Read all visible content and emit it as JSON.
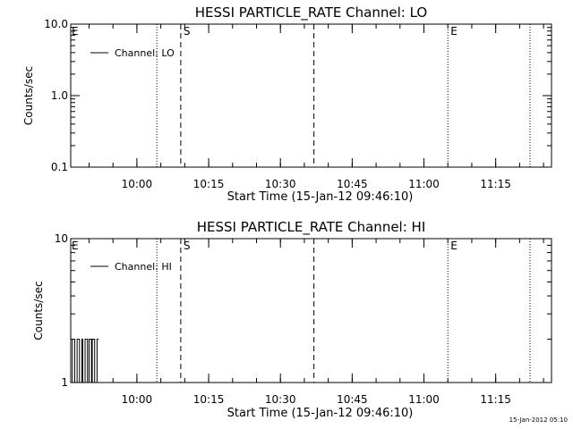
{
  "footer": {
    "timestamp": "15-Jan-2012 05:10"
  },
  "chart_data": [
    {
      "type": "line",
      "title": "HESSI PARTICLE_RATE Channel: LO",
      "xlabel": "Start Time (15-Jan-12 09:46:10)",
      "ylabel": "Counts/sec",
      "yscale": "log",
      "ylim": [
        0.1,
        10.0
      ],
      "xlim": [
        "09:46:10",
        "11:26:40"
      ],
      "x_ticks": [
        "10:00",
        "10:15",
        "10:30",
        "10:45",
        "11:00",
        "11:15"
      ],
      "y_ticks": [
        "0.1",
        "1.0",
        "10.0"
      ],
      "legend": {
        "position": "top-left",
        "entries": [
          "Channel: LO"
        ]
      },
      "series": [
        {
          "name": "Channel: LO",
          "x": [],
          "values": []
        }
      ],
      "markers": [
        {
          "time": "10:04:10",
          "style": "dotted",
          "label": ""
        },
        {
          "time": "10:09:10",
          "style": "dashed",
          "label": "S"
        },
        {
          "time": "10:37:00",
          "style": "dashed",
          "label": ""
        },
        {
          "time": "11:05:00",
          "style": "dotted",
          "label": "E"
        },
        {
          "time": "11:22:10",
          "style": "dotted",
          "label": ""
        }
      ],
      "corner_label": "E"
    },
    {
      "type": "line",
      "title": "HESSI PARTICLE_RATE Channel: HI",
      "xlabel": "Start Time (15-Jan-12 09:46:10)",
      "ylabel": "Counts/sec",
      "yscale": "log",
      "ylim": [
        1,
        10
      ],
      "xlim": [
        "09:46:10",
        "11:26:40"
      ],
      "x_ticks": [
        "10:00",
        "10:15",
        "10:30",
        "10:45",
        "11:00",
        "11:15"
      ],
      "y_ticks": [
        "1",
        "10"
      ],
      "legend": {
        "position": "top-left",
        "entries": [
          "Channel: HI"
        ]
      },
      "series": [
        {
          "name": "Channel: HI",
          "x": [
            "09:46:10",
            "09:46:30",
            "09:46:40",
            "09:47:00",
            "09:47:10",
            "09:47:30",
            "09:47:40",
            "09:48:00",
            "09:48:10",
            "09:48:30",
            "09:48:40",
            "09:49:00",
            "09:49:10",
            "09:49:30",
            "09:49:40",
            "09:50:00",
            "09:50:10",
            "09:50:30",
            "09:50:40",
            "09:51:00",
            "09:51:10",
            "09:51:30",
            "09:51:40",
            "09:52:00"
          ],
          "values": [
            1,
            2,
            2,
            1,
            1,
            2,
            2,
            1,
            1,
            2,
            1,
            1,
            2,
            2,
            1,
            2,
            2,
            1,
            2,
            2,
            1,
            1,
            2,
            2
          ]
        }
      ],
      "markers": [
        {
          "time": "10:04:10",
          "style": "dotted",
          "label": ""
        },
        {
          "time": "10:09:10",
          "style": "dashed",
          "label": "S"
        },
        {
          "time": "10:37:00",
          "style": "dashed",
          "label": ""
        },
        {
          "time": "11:05:00",
          "style": "dotted",
          "label": "E"
        },
        {
          "time": "11:22:10",
          "style": "dotted",
          "label": ""
        }
      ],
      "corner_label": "E"
    }
  ]
}
